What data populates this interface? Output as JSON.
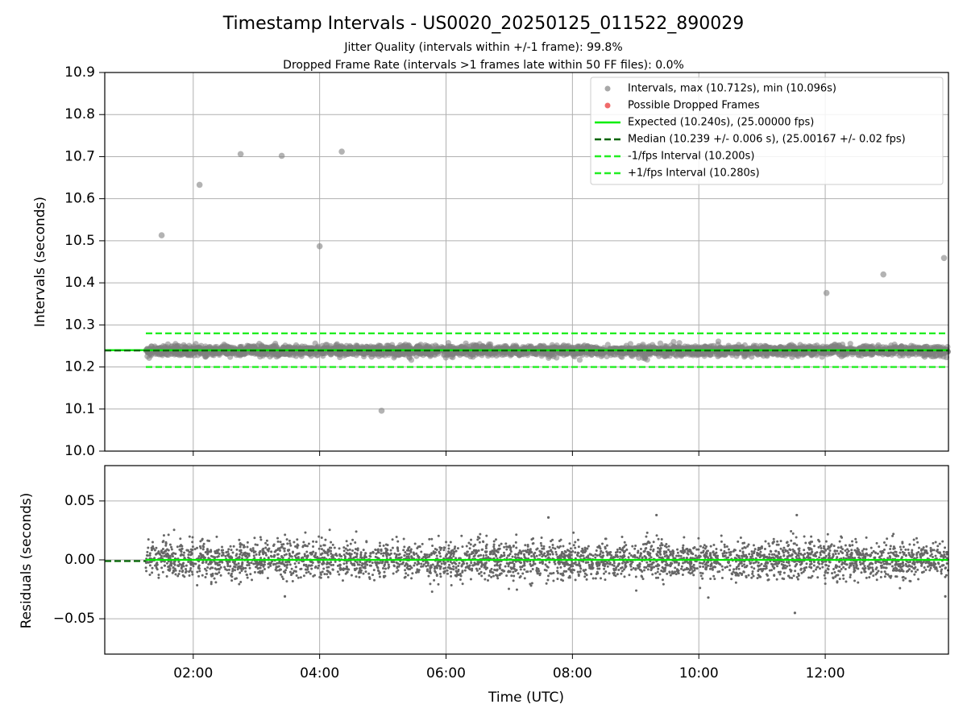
{
  "chart_data": {
    "title": "Timestamp Intervals - US0020_20250125_011522_890029",
    "subtitles": [
      "Jitter Quality (intervals within +/-1 frame): 99.8%",
      "Dropped Frame Rate (intervals >1 frames late within 50 FF files): 0.0%"
    ],
    "xlabel": "Time (UTC)",
    "x_range_hours": [
      0.6,
      13.95
    ],
    "x_ticks": [
      {
        "hour": 2,
        "label": "02:00"
      },
      {
        "hour": 4,
        "label": "04:00"
      },
      {
        "hour": 6,
        "label": "06:00"
      },
      {
        "hour": 8,
        "label": "08:00"
      },
      {
        "hour": 10,
        "label": "10:00"
      },
      {
        "hour": 12,
        "label": "12:00"
      }
    ],
    "colors": {
      "intervals": "#808080",
      "dropped": "#ff0000",
      "expected": "#00ee00",
      "median": "#006400",
      "fps_bounds": "#22ee22",
      "grid": "#b0b0b0"
    },
    "panels": [
      {
        "type": "scatter",
        "ylabel": "Intervals (seconds)",
        "ylim": [
          10.0,
          10.9
        ],
        "y_ticks": [
          "10.0",
          "10.1",
          "10.2",
          "10.3",
          "10.4",
          "10.5",
          "10.6",
          "10.7",
          "10.8",
          "10.9"
        ],
        "grid": true,
        "legend_position": "top-right",
        "legend": [
          {
            "kind": "point",
            "label": "Intervals, max (10.712s), min (10.096s)",
            "color": "#a8a8a8"
          },
          {
            "kind": "point",
            "label": "Possible Dropped Frames",
            "color": "#f06a6a"
          },
          {
            "kind": "line",
            "label": "Expected (10.240s), (25.00000 fps)",
            "color": "#00ee00"
          },
          {
            "kind": "dashed",
            "label": "Median (10.239 +/- 0.006 s), (25.00167 +/- 0.02 fps)",
            "color": "#006400"
          },
          {
            "kind": "dashed",
            "label": "-1/fps Interval (10.200s)",
            "color": "#22ee22"
          },
          {
            "kind": "dashed",
            "label": "+1/fps Interval (10.280s)",
            "color": "#22ee22"
          }
        ],
        "reference_lines": [
          {
            "name": "expected",
            "y": 10.24,
            "x_from": 0.6,
            "style": "solid",
            "color": "#00ee00"
          },
          {
            "name": "median",
            "y": 10.239,
            "x_from": 0.6,
            "style": "dashed",
            "color": "#006400"
          },
          {
            "name": "minus-fps",
            "y": 10.2,
            "x_from": 1.25,
            "style": "dashed",
            "color": "#22ee22"
          },
          {
            "name": "plus-fps",
            "y": 10.28,
            "x_from": 1.25,
            "style": "dashed",
            "color": "#22ee22"
          }
        ],
        "dense_band": {
          "x_start": 1.25,
          "x_end": 13.95,
          "center": 10.239,
          "spread": 0.006
        },
        "outliers": [
          {
            "x": 1.5,
            "y": 10.513
          },
          {
            "x": 2.1,
            "y": 10.633
          },
          {
            "x": 2.75,
            "y": 10.706
          },
          {
            "x": 3.4,
            "y": 10.702
          },
          {
            "x": 4.0,
            "y": 10.487
          },
          {
            "x": 4.35,
            "y": 10.712
          },
          {
            "x": 4.98,
            "y": 10.096
          },
          {
            "x": 12.02,
            "y": 10.376
          },
          {
            "x": 12.92,
            "y": 10.42
          },
          {
            "x": 13.88,
            "y": 10.459
          }
        ]
      },
      {
        "type": "scatter",
        "ylabel": "Residuals (seconds)",
        "ylim": [
          -0.08,
          0.08
        ],
        "y_ticks": [
          {
            "value": 0.05,
            "label": "0.05"
          },
          {
            "value": 0.0,
            "label": "0.00"
          },
          {
            "value": -0.05,
            "label": "−0.05"
          }
        ],
        "grid": true,
        "zero_line": {
          "y": 0.0,
          "color": "#00ee00"
        },
        "median_line": {
          "y": -0.001,
          "x_from": 0.6,
          "x_to": 1.25,
          "color": "#006400"
        },
        "dense_band": {
          "x_start": 1.25,
          "x_end": 13.95,
          "center": 0.0,
          "spread": 0.008
        },
        "outliers": [
          {
            "x": 7.62,
            "y": 0.036
          },
          {
            "x": 9.33,
            "y": 0.038
          },
          {
            "x": 11.55,
            "y": 0.038
          },
          {
            "x": 11.52,
            "y": -0.045
          },
          {
            "x": 10.15,
            "y": -0.032
          },
          {
            "x": 3.45,
            "y": -0.031
          },
          {
            "x": 13.9,
            "y": -0.031
          }
        ]
      }
    ]
  }
}
